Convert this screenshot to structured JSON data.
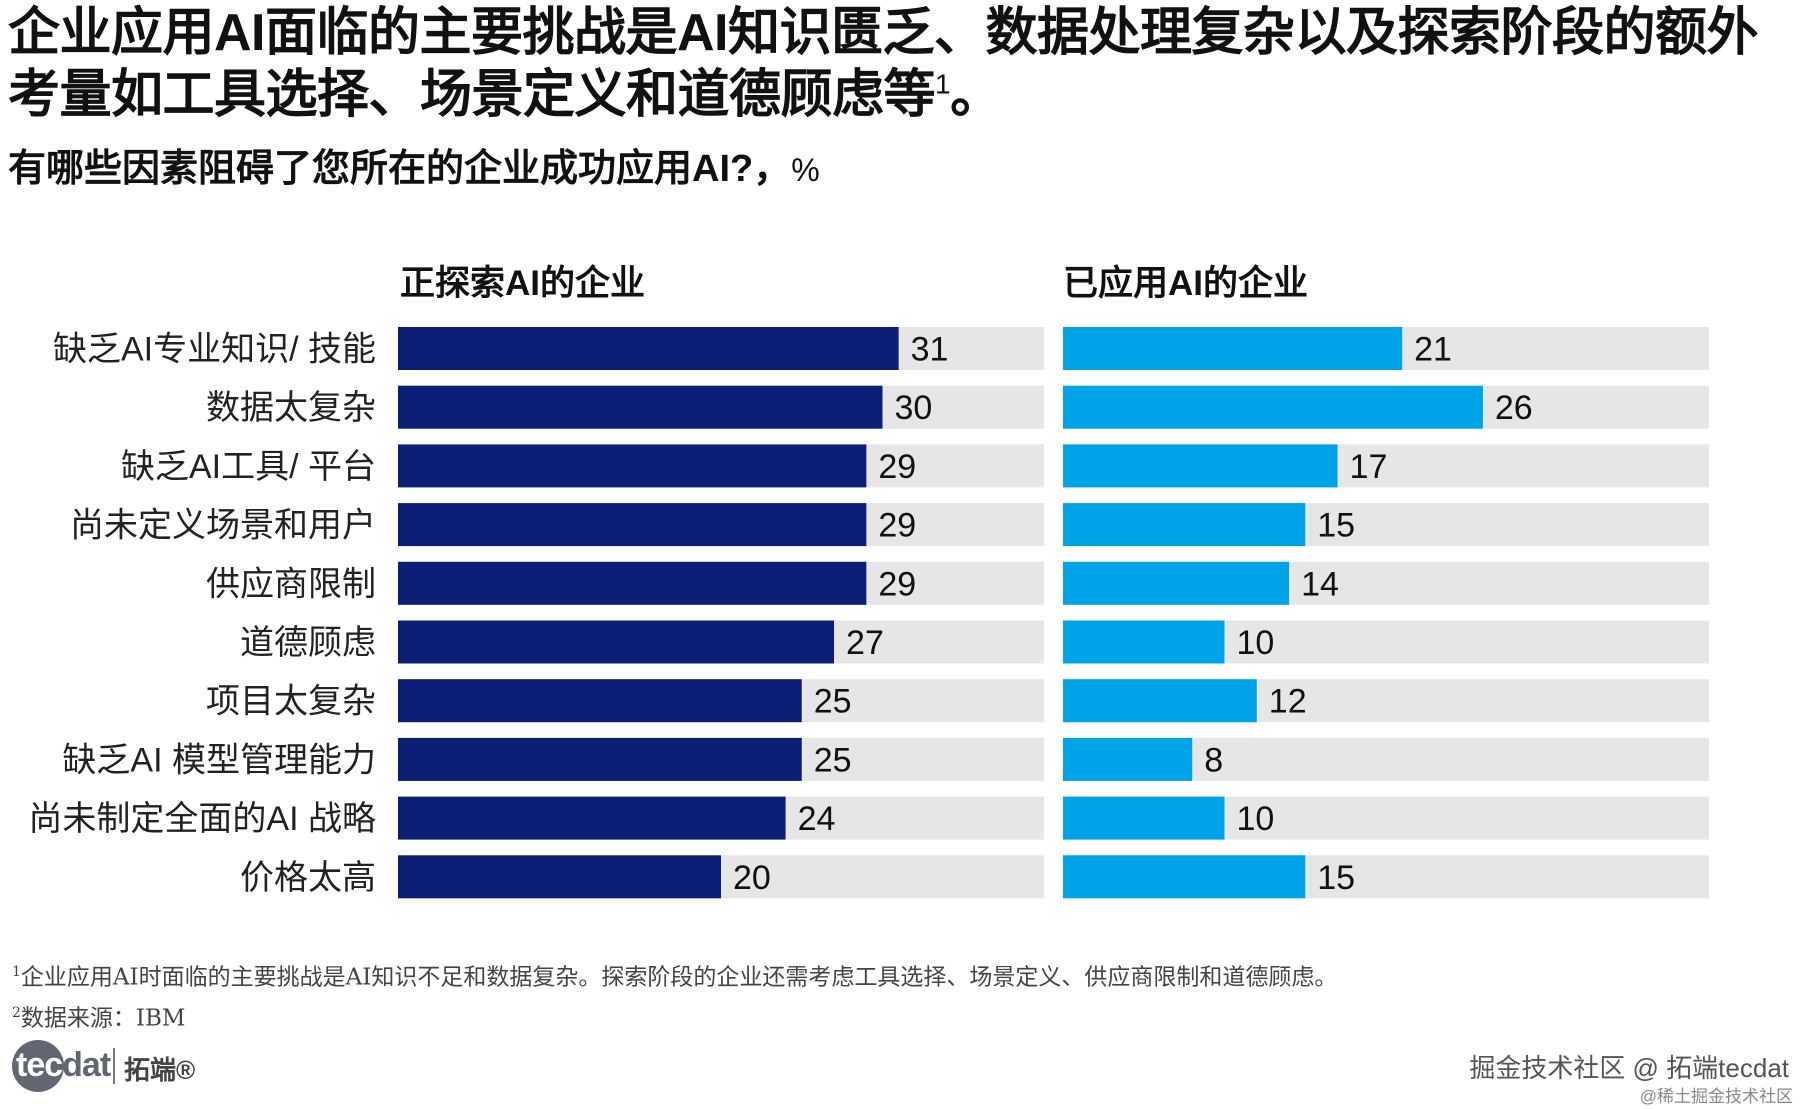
{
  "title": "企业应用AI面临的主要挑战是AI知识匮乏、数据处理复杂以及探索阶段的额外考量如工具选择、场景定义和道德顾虑等",
  "title_footnote_mark": "1",
  "title_end": "。",
  "subtitle": "有哪些因素阻碍了您所在的企业成功应用AI?，",
  "subtitle_unit": "%",
  "colors": {
    "exploring": "#0b1f76",
    "applied": "#00a2e8",
    "track": "#e6e6e6"
  },
  "chart_data": {
    "type": "bar",
    "orientation": "horizontal",
    "categories": [
      "缺乏AI专业知识/ 技能",
      "数据太复杂",
      "缺乏AI工具/ 平台",
      "尚未定义场景和用户",
      "供应商限制",
      "道德顾虑",
      "项目太复杂",
      "缺乏AI 模型管理能力",
      "尚未制定全面的AI 战略",
      "价格太高"
    ],
    "series": [
      {
        "name": "正探索AI的企业",
        "values": [
          31,
          30,
          29,
          29,
          29,
          27,
          25,
          25,
          24,
          20
        ]
      },
      {
        "name": "已应用AI的企业",
        "values": [
          21,
          26,
          17,
          15,
          14,
          10,
          12,
          8,
          10,
          15
        ]
      }
    ],
    "xlim": [
      0,
      40
    ],
    "unit": "%"
  },
  "footnotes": {
    "note1_mark": "1",
    "note1": "企业应用AI时面临的主要挑战是AI知识不足和数据复杂。探索阶段的企业还需考虑工具选择、场景定义、供应商限制和道德顾虑。",
    "note2_mark": "2",
    "note2": "数据来源：IBM"
  },
  "logo": {
    "text_tec": "tec",
    "text_dat": "dat",
    "cn": "拓端®"
  },
  "watermark": {
    "main": "掘金技术社区 @ 拓端tecdat",
    "sub": "@稀土掘金技术社区"
  }
}
